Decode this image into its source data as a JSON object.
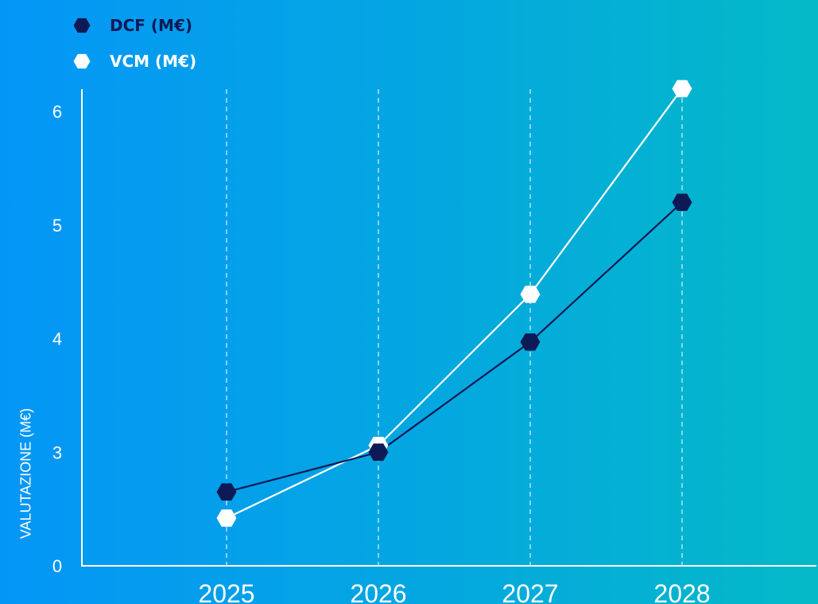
{
  "chart_data": {
    "type": "line",
    "title": "",
    "xlabel": "",
    "ylabel": "VALUTAZIONE (M€)",
    "categories": [
      "2025",
      "2026",
      "2027",
      "2028"
    ],
    "y_ticks": [
      "0",
      "3",
      "4",
      "5",
      "6"
    ],
    "ylim": [
      0,
      6
    ],
    "axis_break": "between 0 and 3 (0 tick placed as if at 2)",
    "grid": "vertical dashed lines at each category",
    "legend_position": "top-left",
    "series": [
      {
        "name": "DCF (M€)",
        "values": [
          2.65,
          3.0,
          3.97,
          5.2
        ],
        "color": "#0e1a55",
        "marker": "hexagon"
      },
      {
        "name": "VCM (M€)",
        "values": [
          2.42,
          3.06,
          4.39,
          6.2
        ],
        "color": "#ffffff",
        "marker": "hexagon"
      }
    ],
    "axis_color": "#ffffff",
    "background": [
      "#0496f7",
      "#04b9c7"
    ]
  }
}
